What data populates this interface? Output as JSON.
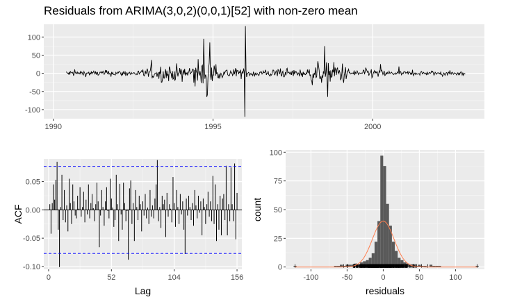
{
  "title": "Residuals from ARIMA(3,0,2)(0,0,1)[52] with non-zero mean",
  "colors": {
    "panel_bg": "#ebebeb",
    "grid_major": "#ffffff",
    "line": "#000000",
    "ci_line": "#0000ff",
    "hist_bar": "#595959",
    "density": "#ff7f50"
  },
  "chart_data": [
    {
      "id": "residual-series",
      "type": "line",
      "x_range": [
        1990.4,
        2002.9
      ],
      "xlim": [
        1989.7,
        2003.5
      ],
      "ylim": [
        -125,
        135
      ],
      "xticks": [
        1990,
        1995,
        2000
      ],
      "xtick_labels": [
        "1990",
        "1995",
        "2000"
      ],
      "yticks": [
        -100,
        -50,
        0,
        50,
        100
      ],
      "ytick_labels": [
        "-100",
        "-50",
        "0",
        "50",
        "100"
      ],
      "xlabel": "",
      "ylabel": "",
      "grid": true,
      "notable_points": [
        {
          "x": 1994.7,
          "y": 95
        },
        {
          "x": 1994.8,
          "y": -65
        },
        {
          "x": 1994.9,
          "y": 85
        },
        {
          "x": 1996.0,
          "y": -120
        },
        {
          "x": 1996.02,
          "y": 130
        },
        {
          "x": 1998.5,
          "y": 75
        },
        {
          "x": 1998.6,
          "y": -65
        }
      ]
    },
    {
      "id": "acf",
      "type": "bar",
      "xlabel": "Lag",
      "ylabel": "ACF",
      "xlim": [
        -4,
        160
      ],
      "ylim": [
        -0.105,
        0.09
      ],
      "xticks": [
        0,
        52,
        104,
        156
      ],
      "xtick_labels": [
        "0",
        "52",
        "104",
        "156"
      ],
      "yticks": [
        -0.1,
        -0.05,
        0,
        0.05
      ],
      "ytick_labels": [
        "-0.10",
        "-0.05",
        "0.00",
        "0.05"
      ],
      "ci": 0.077,
      "lags": [
        1,
        2,
        3,
        4,
        5,
        6,
        7,
        8,
        9,
        10,
        11,
        12,
        13,
        14,
        15,
        16,
        17,
        18,
        19,
        20,
        21,
        22,
        23,
        24,
        25,
        26,
        27,
        28,
        29,
        30,
        31,
        32,
        33,
        34,
        35,
        36,
        37,
        38,
        39,
        40,
        41,
        42,
        43,
        44,
        45,
        46,
        47,
        48,
        49,
        50,
        51,
        52,
        53,
        54,
        55,
        56,
        57,
        58,
        59,
        60,
        61,
        62,
        63,
        64,
        65,
        66,
        67,
        68,
        69,
        70,
        71,
        72,
        73,
        74,
        75,
        76,
        77,
        78,
        79,
        80,
        81,
        82,
        83,
        84,
        85,
        86,
        87,
        88,
        89,
        90,
        91,
        92,
        93,
        94,
        95,
        96,
        97,
        98,
        99,
        100,
        101,
        102,
        103,
        104,
        105,
        106,
        107,
        108,
        109,
        110,
        111,
        112,
        113,
        114,
        115,
        116,
        117,
        118,
        119,
        120,
        121,
        122,
        123,
        124,
        125,
        126,
        127,
        128,
        129,
        130,
        131,
        132,
        133,
        134,
        135,
        136,
        137,
        138,
        139,
        140,
        141,
        142,
        143,
        144,
        145,
        146,
        147,
        148,
        149,
        150,
        151,
        152,
        153,
        154,
        155,
        156
      ],
      "values": [
        0.01,
        -0.042,
        0.012,
        0.045,
        0.018,
        0.053,
        0.085,
        -0.035,
        -0.101,
        0.005,
        0.062,
        -0.018,
        0.035,
        -0.022,
        0.008,
        -0.038,
        0.055,
        0.012,
        -0.025,
        0.045,
        0.015,
        -0.01,
        -0.015,
        0.025,
        0.002,
        0.04,
        -0.012,
        0.005,
        0.032,
        -0.022,
        0.018,
        -0.008,
        0.045,
        -0.015,
        0.012,
        0.028,
        0.003,
        -0.02,
        0.01,
        0.048,
        0.015,
        -0.066,
        -0.01,
        0.035,
        0.005,
        -0.028,
        0.015,
        0.04,
        -0.002,
        -0.015,
        0.055,
        0.02,
        0.004,
        -0.03,
        -0.018,
        0.062,
        0.01,
        -0.055,
        0.046,
        -0.008,
        -0.035,
        0.048,
        0.012,
        -0.02,
        -0.002,
        -0.088,
        0.038,
        0.052,
        -0.025,
        0.012,
        -0.055,
        0.035,
        0.005,
        -0.018,
        0.025,
        0.01,
        -0.038,
        0.015,
        -0.01,
        0.028,
        -0.015,
        0.004,
        -0.025,
        0.035,
        -0.012,
        0.008,
        -0.015,
        0.02,
        0.045,
        0.088,
        -0.02,
        0.005,
        -0.032,
        0.025,
        0.01,
        0.018,
        -0.048,
        0.03,
        -0.012,
        0.01,
        0.002,
        -0.022,
        0.058,
        0.012,
        -0.03,
        0.035,
        0.005,
        -0.025,
        0.028,
        -0.008,
        0.015,
        -0.035,
        -0.078,
        0.02,
        -0.01,
        0.025,
        0.005,
        -0.018,
        0.012,
        -0.028,
        0.035,
        0.008,
        -0.015,
        0.025,
        -0.005,
        0.015,
        -0.045,
        0.02,
        0.005,
        -0.025,
        0.01,
        0.032,
        -0.012,
        0.015,
        -0.02,
        0.06,
        -0.025,
        0.045,
        -0.055,
        0.01,
        -0.035,
        0.025,
        -0.045,
        0.02,
        0.028,
        -0.018,
        0.078,
        -0.045,
        0.01,
        -0.02,
        0.075,
        0.01,
        -0.02,
        0.082,
        -0.052,
        0.03
      ]
    },
    {
      "id": "histogram",
      "type": "bar",
      "xlabel": "residuals",
      "ylabel": "count",
      "xlim": [
        -135,
        140
      ],
      "ylim": [
        -2,
        102
      ],
      "xticks": [
        -100,
        -50,
        0,
        50,
        100
      ],
      "xtick_labels": [
        "-100",
        "-50",
        "0",
        "50",
        "100"
      ],
      "yticks": [
        0,
        25,
        50,
        75,
        100
      ],
      "ytick_labels": [
        "0",
        "25",
        "50",
        "75",
        "100"
      ],
      "bins": [
        [
          -122,
          1
        ],
        [
          -115,
          0
        ],
        [
          -108,
          0
        ],
        [
          -101,
          0
        ],
        [
          -94,
          0
        ],
        [
          -87,
          0
        ],
        [
          -80,
          0
        ],
        [
          -73,
          0
        ],
        [
          -66,
          1
        ],
        [
          -62,
          1
        ],
        [
          -58,
          2
        ],
        [
          -54,
          1
        ],
        [
          -50,
          2
        ],
        [
          -46,
          2
        ],
        [
          -42,
          2
        ],
        [
          -38,
          3
        ],
        [
          -34,
          2
        ],
        [
          -30,
          4
        ],
        [
          -26,
          5
        ],
        [
          -22,
          6
        ],
        [
          -18,
          8
        ],
        [
          -14,
          12
        ],
        [
          -10,
          22
        ],
        [
          -6,
          40
        ],
        [
          -2,
          97
        ],
        [
          2,
          88
        ],
        [
          6,
          55
        ],
        [
          10,
          36
        ],
        [
          14,
          22
        ],
        [
          18,
          14
        ],
        [
          22,
          8
        ],
        [
          26,
          6
        ],
        [
          30,
          4
        ],
        [
          34,
          3
        ],
        [
          38,
          2
        ],
        [
          42,
          2
        ],
        [
          46,
          1
        ],
        [
          50,
          2
        ],
        [
          54,
          1
        ],
        [
          58,
          1
        ],
        [
          62,
          0
        ],
        [
          66,
          2
        ],
        [
          70,
          1
        ],
        [
          74,
          1
        ],
        [
          78,
          1
        ],
        [
          82,
          0
        ],
        [
          86,
          0
        ],
        [
          130,
          1
        ]
      ],
      "density_curve": {
        "mean": 0,
        "sd": 15,
        "peak": 40
      }
    }
  ]
}
